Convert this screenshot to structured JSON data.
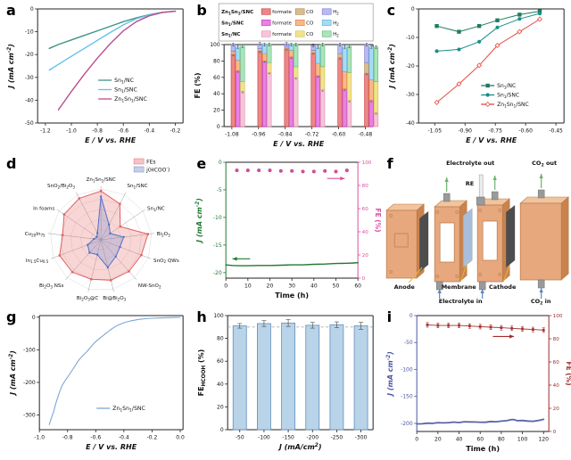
{
  "figure": {
    "background": "#ffffff"
  },
  "chart_data": [
    {
      "panel": "a",
      "type": "line",
      "xlabel": "E / V vs. RHE",
      "ylabel": "J (mA cm^{-2})",
      "xlim": [
        -1.26,
        -0.14
      ],
      "ylim": [
        -50,
        0
      ],
      "xticks": [
        "-1.2",
        "-1.0",
        "-0.8",
        "-0.6",
        "-0.4",
        "-0.2"
      ],
      "yticks": [
        "0",
        "-10",
        "-20",
        "-30",
        "-40",
        "-50"
      ],
      "series": [
        {
          "name": "Sn_{1}/NC",
          "color": "#3d9383",
          "x": [
            -1.17,
            -1.1,
            -1.0,
            -0.9,
            -0.8,
            -0.7,
            -0.6,
            -0.5,
            -0.4,
            -0.3,
            -0.2
          ],
          "y": [
            -17.3,
            -15.6,
            -13.6,
            -11.6,
            -9.6,
            -7.6,
            -5.6,
            -3.9,
            -2.5,
            -1.5,
            -1.0
          ]
        },
        {
          "name": "Sn_{1}/SNC",
          "color": "#63c0ea",
          "x": [
            -1.17,
            -1.1,
            -1.0,
            -0.9,
            -0.8,
            -0.7,
            -0.6,
            -0.5,
            -0.4,
            -0.3,
            -0.2
          ],
          "y": [
            -26.8,
            -24.3,
            -20.8,
            -17.3,
            -13.8,
            -10.3,
            -7.0,
            -4.3,
            -2.6,
            -1.5,
            -1.0
          ]
        },
        {
          "name": "Zn_{1}Sn_{1}/SNC",
          "color": "#bc4e8d",
          "x": [
            -1.1,
            -1.05,
            -1.0,
            -0.9,
            -0.8,
            -0.7,
            -0.6,
            -0.5,
            -0.4,
            -0.3,
            -0.2
          ],
          "y": [
            -44.2,
            -40.2,
            -36.2,
            -28.6,
            -21.6,
            -15.2,
            -9.6,
            -5.6,
            -3.0,
            -1.6,
            -1.0
          ]
        }
      ]
    },
    {
      "panel": "b",
      "type": "stacked-bar",
      "xlabel": "E / V vs. RHE",
      "ylabel": "FE (%)",
      "ylim": [
        0,
        100
      ],
      "yticks": [
        "0",
        "20",
        "40",
        "60",
        "80",
        "100"
      ],
      "xticks": [
        "-1.08",
        "-0.96",
        "-0.84",
        "-0.72",
        "-0.60",
        "-0.48"
      ],
      "products": [
        "formate",
        "CO",
        "H_{2}"
      ],
      "catalysts": [
        {
          "name": "Zn_{1}Sn_{1}/SNC",
          "fills": [
            "#ef8585",
            "#d9bd8e",
            "#b9b9f2"
          ],
          "strokes": [
            "#c23b3b",
            "#a8834a",
            "#7a7ad0"
          ]
        },
        {
          "name": "Sn_{1}/SNC",
          "fills": [
            "#ea7fe5",
            "#f8b98a",
            "#a5dcf5"
          ],
          "strokes": [
            "#b944b0",
            "#e07b35",
            "#58b0dd"
          ]
        },
        {
          "name": "Sn_{1}/NC",
          "fills": [
            "#f6c6d8",
            "#f1e290",
            "#abe3bb"
          ],
          "strokes": [
            "#e08aa8",
            "#cfc043",
            "#5cb878"
          ]
        }
      ],
      "values": [
        [
          [
            88,
            4,
            8
          ],
          [
            68,
            13,
            16
          ],
          [
            43,
            12,
            43
          ]
        ],
        [
          [
            92,
            3,
            6
          ],
          [
            80,
            9,
            11
          ],
          [
            66,
            12,
            22
          ]
        ],
        [
          [
            95,
            2,
            4
          ],
          [
            85,
            8,
            7
          ],
          [
            60,
            13,
            27
          ]
        ],
        [
          [
            90,
            3,
            6
          ],
          [
            62,
            15,
            20
          ],
          [
            45,
            28,
            27
          ]
        ],
        [
          [
            84,
            5,
            11
          ],
          [
            46,
            21,
            30
          ],
          [
            32,
            34,
            32
          ]
        ],
        [
          [
            65,
            13,
            22
          ],
          [
            32,
            25,
            40
          ],
          [
            17,
            38,
            42
          ]
        ]
      ]
    },
    {
      "panel": "c",
      "type": "line-marker",
      "xlabel": "E / V vs. RHE",
      "ylabel": "J (mA cm^{-2})",
      "xlim": [
        -1.13,
        -0.41
      ],
      "ylim": [
        -40,
        0
      ],
      "xticks": [
        "-1.05",
        "-0.90",
        "-0.75",
        "-0.60",
        "-0.45"
      ],
      "yticks": [
        "0",
        "-10",
        "-20",
        "-30",
        "-40"
      ],
      "series": [
        {
          "name": "Sn_{1}/NC",
          "color": "#1e7d5e",
          "marker": "square",
          "x": [
            -1.04,
            -0.93,
            -0.83,
            -0.74,
            -0.63,
            -0.53
          ],
          "y": [
            -6,
            -8,
            -6,
            -4,
            -2,
            -0.8
          ]
        },
        {
          "name": "Sn_{1}/SNC",
          "color": "#178f8a",
          "marker": "circle",
          "x": [
            -1.04,
            -0.93,
            -0.83,
            -0.74,
            -0.63,
            -0.53
          ],
          "y": [
            -14.8,
            -14.2,
            -11.5,
            -6.5,
            -3.5,
            -1.6
          ]
        },
        {
          "name": "Zn_{1}Sn_{1}/SNC",
          "color": "#e4493f",
          "marker": "diamond",
          "open": true,
          "x": [
            -1.04,
            -0.93,
            -0.83,
            -0.74,
            -0.63,
            -0.53
          ],
          "y": [
            -32.8,
            -26.3,
            -19.8,
            -12.8,
            -8.0,
            -3.6
          ]
        }
      ]
    },
    {
      "panel": "d",
      "type": "radar",
      "legend": [
        {
          "label": "FEs",
          "fill": "#f6c3c3",
          "stroke": "#e08080"
        },
        {
          "label": "j(HCOO^{-})",
          "fill": "#c4cfe8",
          "stroke": "#8a9ccc"
        }
      ],
      "axes": [
        "Zn_{1}Sn_{1}/SNC",
        "Sn_{1}/SNC",
        "Sn_{1}/NC",
        "Bi_{2}O_{3}",
        "SnO_{2} QWs",
        "NW-SnO_{2}",
        "Bi@Bi_{2}O_{3}",
        "Bi_{2}O_{3}@C",
        "Bi_{2}O_{3} NSs",
        "In_{1.5}Cu_{0.5}",
        "Cu_{20}In_{75}",
        "In foams",
        "SnO_{2}/Bi_{2}O_{3}"
      ],
      "series": [
        {
          "name": "FEs",
          "color": "#e06060",
          "fill": "rgba(235,130,130,0.33)",
          "values": [
            96,
            80,
            46,
            93,
            85,
            83,
            82,
            80,
            85,
            87,
            76,
            88,
            92
          ]
        },
        {
          "name": "j(HCOO^{-})",
          "color": "#5570c8",
          "fill": "rgba(120,140,210,0.30)",
          "values": [
            85,
            34,
            22,
            45,
            40,
            44,
            56,
            30,
            34,
            28,
            14,
            10,
            15
          ]
        }
      ]
    },
    {
      "panel": "e",
      "type": "dual-line",
      "xlabel": "Time (h)",
      "ylabel": "J (mA cm^{-2})",
      "rlabel": "FE (%)",
      "xlim": [
        0,
        60
      ],
      "ylim": [
        -21,
        0
      ],
      "rlim": [
        0,
        100
      ],
      "xticks": [
        "0",
        "10",
        "20",
        "30",
        "40",
        "50",
        "60"
      ],
      "yticks": [
        "0",
        "-5",
        "-10",
        "-15",
        "-20"
      ],
      "rticks": [
        "0",
        "20",
        "40",
        "60",
        "80",
        "100"
      ],
      "j": {
        "color": "#1f7a33",
        "x": [
          0,
          3,
          6,
          10,
          15,
          20,
          25,
          30,
          35,
          40,
          45,
          50,
          55,
          58,
          60
        ],
        "y": [
          -18.6,
          -18.7,
          -18.75,
          -18.75,
          -18.7,
          -18.7,
          -18.65,
          -18.6,
          -18.6,
          -18.5,
          -18.45,
          -18.35,
          -18.3,
          -18.25,
          -18.2
        ]
      },
      "fe": {
        "color": "#d94f9e",
        "x": [
          5,
          10,
          15,
          20,
          25,
          30,
          35,
          40,
          45,
          50,
          55
        ],
        "y": [
          93,
          93,
          93,
          93,
          92.5,
          92.5,
          92,
          92,
          92.5,
          92,
          93
        ]
      }
    },
    {
      "panel": "f",
      "type": "schematic",
      "labels": {
        "electrolyte_out": "Electrolyte out",
        "co2_out": "CO_{2} out",
        "re": "RE",
        "anode": "Anode",
        "membrane": "Membrane",
        "cathode": "Cathode",
        "electrolyte_in": "Electrolyte in",
        "co2_in": "CO_{2} in"
      },
      "colors": {
        "plate": "#e8a87e",
        "plate_side": "#c9834f",
        "plate_top": "#f2c49e",
        "edge": "#b87a48",
        "electrode": "#4d4d4d",
        "membrane": "#a9bed8",
        "port": "#9a9a9a",
        "arrow_out": "#6db36d",
        "arrow_in": "#5b87c5",
        "leader": "#e7b73a",
        "re_body": "#ececec"
      }
    },
    {
      "panel": "g",
      "type": "line",
      "jitter": true,
      "xlabel": "E / V vs. RHE",
      "ylabel": "J (mA cm^{-2})",
      "xlim": [
        -1.0,
        0.02
      ],
      "ylim": [
        -345,
        5
      ],
      "xticks": [
        "-1.0",
        "-0.8",
        "-0.6",
        "-0.4",
        "-0.2",
        "0.0"
      ],
      "yticks": [
        "0",
        "-100",
        "-200",
        "-300"
      ],
      "series": [
        {
          "name": "Zn_{1}Sn_{1}/SNC",
          "color": "#7aa8d6",
          "x": [
            0,
            -0.05,
            -0.1,
            -0.15,
            -0.2,
            -0.25,
            -0.3,
            -0.35,
            -0.4,
            -0.44,
            -0.47,
            -0.5,
            -0.53,
            -0.56,
            -0.59,
            -0.62,
            -0.64,
            -0.66,
            -0.68,
            -0.7,
            -0.72,
            -0.74,
            -0.76,
            -0.78,
            -0.8,
            -0.82,
            -0.84,
            -0.86,
            -0.88,
            -0.9,
            -0.92,
            -0.93
          ],
          "y": [
            -0.5,
            -1,
            -1.6,
            -2.3,
            -3.2,
            -4.6,
            -7,
            -11,
            -17,
            -24,
            -31,
            -40,
            -50,
            -61,
            -72,
            -84,
            -93,
            -103,
            -112,
            -122,
            -133,
            -146,
            -157,
            -169,
            -182,
            -197,
            -213,
            -236,
            -259,
            -287,
            -312,
            -330
          ]
        }
      ]
    },
    {
      "panel": "h",
      "type": "bar-error",
      "xlabel": "J (mA/cm^{2})",
      "ylabel": "FE_{HCOOH} (%)",
      "ylim": [
        0,
        100
      ],
      "yticks": [
        "0",
        "20",
        "40",
        "60",
        "80",
        "100"
      ],
      "categories": [
        "-50",
        "-100",
        "-150",
        "-200",
        "-250",
        "-300"
      ],
      "values": [
        91,
        93,
        93.5,
        91.5,
        92,
        91
      ],
      "errors": [
        2,
        2.5,
        3,
        2.5,
        2.5,
        3
      ],
      "dashed_line": 90,
      "bar_fill": "#b9d3e8",
      "bar_stroke": "#5f8fbf"
    },
    {
      "panel": "i",
      "type": "dual-line",
      "xlabel": "Time (h)",
      "ylabel": "J (mA cm^{-2})",
      "rlabel": "FE (%)",
      "xlim": [
        0,
        125
      ],
      "ylim": [
        -215,
        0
      ],
      "rlim": [
        0,
        100
      ],
      "xticks": [
        "0",
        "20",
        "40",
        "60",
        "80",
        "100",
        "120"
      ],
      "yticks": [
        "0",
        "-50",
        "-100",
        "-150",
        "-200"
      ],
      "rticks": [
        "0",
        "20",
        "40",
        "60",
        "80",
        "100"
      ],
      "j": {
        "color": "#5c63a8",
        "x": [
          0,
          5,
          10,
          15,
          20,
          25,
          30,
          35,
          40,
          45,
          50,
          55,
          60,
          65,
          70,
          75,
          80,
          85,
          90,
          92,
          95,
          100,
          105,
          110,
          115,
          120
        ],
        "y": [
          -201,
          -200.5,
          -200,
          -199.5,
          -199,
          -199,
          -198.5,
          -198,
          -198,
          -197.5,
          -197,
          -197.5,
          -198,
          -197.5,
          -197,
          -196.5,
          -196,
          -195,
          -192.5,
          -193.5,
          -194.5,
          -195,
          -195.5,
          -196,
          -195,
          -192
        ]
      },
      "fe": {
        "color": "#a63232",
        "err": 2,
        "x": [
          10,
          20,
          30,
          40,
          50,
          60,
          70,
          80,
          90,
          100,
          110,
          120
        ],
        "y": [
          92,
          91.5,
          91.5,
          91.5,
          91,
          90.5,
          90,
          89.5,
          89,
          88.5,
          88,
          87.5
        ]
      }
    }
  ]
}
